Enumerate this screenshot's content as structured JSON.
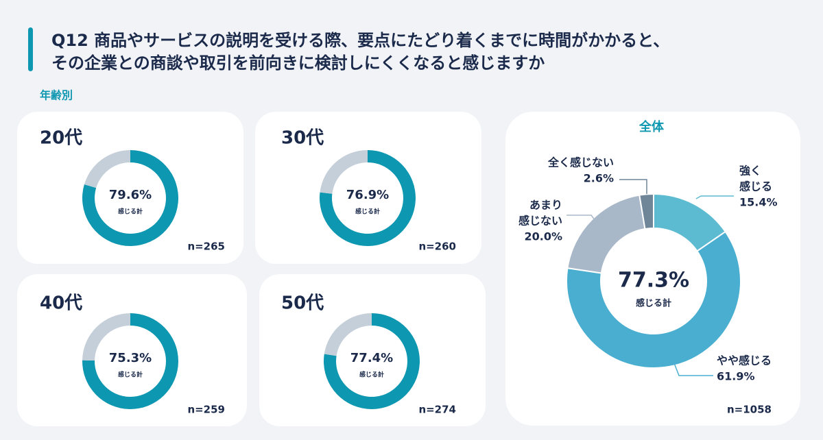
{
  "title": [
    "Q12 商品やサービスの説明を受ける際、要点にたどり着くまでに時間がかかると、",
    "その企業との商談や取引を前向きに検討しにくくなると感じますか"
  ],
  "section_label": "年齢別",
  "chart_data": [
    {
      "type": "donut",
      "title": "20代",
      "values": [
        79.6,
        20.4
      ],
      "colors": [
        "#0e97b0",
        "#c5cfd9"
      ],
      "center_label": "79.6%",
      "center_caption": "感じる計",
      "note": "n=265"
    },
    {
      "type": "donut",
      "title": "30代",
      "values": [
        76.9,
        23.1
      ],
      "colors": [
        "#0e97b0",
        "#c5cfd9"
      ],
      "center_label": "76.9%",
      "center_caption": "感じる計",
      "note": "n=260"
    },
    {
      "type": "donut",
      "title": "40代",
      "values": [
        75.3,
        24.7
      ],
      "colors": [
        "#0e97b0",
        "#c5cfd9"
      ],
      "center_label": "75.3%",
      "center_caption": "感じる計",
      "note": "n=259"
    },
    {
      "type": "donut",
      "title": "50代",
      "values": [
        77.4,
        22.6
      ],
      "colors": [
        "#0e97b0",
        "#c5cfd9"
      ],
      "center_label": "77.4%",
      "center_caption": "感じる計",
      "note": "n=274"
    },
    {
      "type": "donut",
      "title": "全体",
      "categories": [
        [
          "強く",
          "感じる"
        ],
        [
          "やや感じる"
        ],
        [
          "あまり",
          "感じない"
        ],
        [
          "全く感じない"
        ]
      ],
      "values": [
        15.4,
        61.9,
        20.0,
        2.6
      ],
      "value_labels": [
        "15.4%",
        "61.9%",
        "20.0%",
        "2.6%"
      ],
      "colors": [
        "#5cbbd0",
        "#4aaed0",
        "#a9b8c8",
        "#6f8598"
      ],
      "center_label": "77.3%",
      "center_caption": "感じる計",
      "note": "n=1058"
    }
  ]
}
